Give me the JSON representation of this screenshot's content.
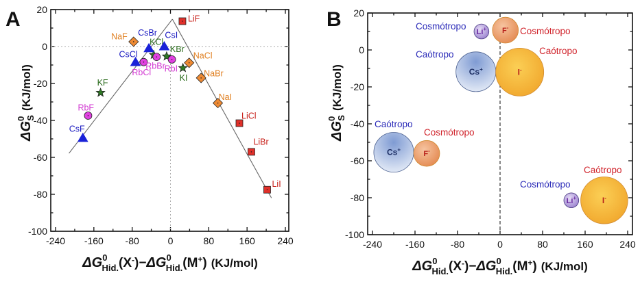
{
  "chart_data": [
    {
      "type": "scatter",
      "panel_label": "A",
      "xlabel": {
        "delta": "ΔG",
        "sup": "0",
        "sub": "Hid.",
        "p1": "(X",
        "minus": "-",
        "p2": ")−",
        "p3": "(M",
        "plus": "+",
        "p4": ")",
        "units": "(KJ/mol)"
      },
      "ylabel": {
        "delta": "ΔG",
        "sup": "0",
        "sub": "S",
        "units": "(KJ/mol)"
      },
      "xlim": [
        -250,
        250
      ],
      "ylim": [
        -100,
        20
      ],
      "xticks": [
        -240,
        -160,
        -80,
        0,
        80,
        160,
        240
      ],
      "yticks": [
        20,
        0,
        -20,
        -40,
        -60,
        -80,
        -100
      ],
      "reference_lines": {
        "x": 0,
        "y": 0,
        "style": "dotted"
      },
      "fit_lines": [
        {
          "x": [
            -212,
            4
          ],
          "y": [
            -57.8,
            14.8
          ]
        },
        {
          "x": [
            4,
            211
          ],
          "y": [
            14.8,
            -82
          ]
        }
      ],
      "series": [
        {
          "name": "Li",
          "marker": "square",
          "color": "#e0302a",
          "text_color": "#c8201a",
          "points": [
            {
              "label": "LiF",
              "x": 25,
              "y": 13.7
            },
            {
              "label": "LiCl",
              "x": 144,
              "y": -41.5
            },
            {
              "label": "LiBr",
              "x": 169,
              "y": -57
            },
            {
              "label": "LiI",
              "x": 202,
              "y": -77.5
            }
          ]
        },
        {
          "name": "Na",
          "marker": "diamond",
          "color": "#ee8a33",
          "text_color": "#e07f20",
          "points": [
            {
              "label": "NaF",
              "x": -77,
              "y": 2.6
            },
            {
              "label": "NaCl",
              "x": 39,
              "y": -8.8
            },
            {
              "label": "NaBr",
              "x": 64,
              "y": -17
            },
            {
              "label": "NaI",
              "x": 99,
              "y": -30.6
            }
          ]
        },
        {
          "name": "K",
          "marker": "star",
          "color": "#2f7a25",
          "text_color": "#2a6b1c",
          "points": [
            {
              "label": "KF",
              "x": -146,
              "y": -25
            },
            {
              "label": "KCl",
              "x": -35,
              "y": -4.5
            },
            {
              "label": "KBr",
              "x": -8,
              "y": -5.3
            },
            {
              "label": "KI",
              "x": 26,
              "y": -11.6
            }
          ]
        },
        {
          "name": "Rb",
          "marker": "circle",
          "color": "#e040e0",
          "text_color": "#d23ad2",
          "points": [
            {
              "label": "RbF",
              "x": -172,
              "y": -37.4
            },
            {
              "label": "RbCl",
              "x": -56,
              "y": -8.4
            },
            {
              "label": "RbBr",
              "x": -29,
              "y": -5.6
            },
            {
              "label": "RbI",
              "x": 3,
              "y": -7
            }
          ]
        },
        {
          "name": "Cs",
          "marker": "triangle",
          "color": "#1a22d8",
          "text_color": "#1818c0",
          "points": [
            {
              "label": "CsF",
              "x": -183,
              "y": -49.6
            },
            {
              "label": "CsCl",
              "x": -73,
              "y": -8.5
            },
            {
              "label": "CsBr",
              "x": -45,
              "y": -1
            },
            {
              "label": "CsI",
              "x": -13,
              "y": 0
            }
          ]
        }
      ]
    },
    {
      "type": "scatter",
      "subtype": "bubble",
      "panel_label": "B",
      "xlabel": {
        "delta": "ΔG",
        "sup": "0",
        "sub": "Hid.",
        "p1": "(X",
        "minus": "-",
        "p2": ")−",
        "p3": "(M",
        "plus": "+",
        "p4": ")",
        "units": "(KJ/mol)"
      },
      "ylabel": {
        "delta": "ΔG",
        "sup": "0",
        "sub": "S",
        "units": "(KJ/mol)"
      },
      "xlim": [
        -250,
        250
      ],
      "ylim": [
        -100,
        20
      ],
      "xticks": [
        -240,
        -160,
        -80,
        0,
        80,
        160,
        240
      ],
      "yticks": [
        20,
        0,
        -20,
        -40,
        -60,
        -80,
        -100
      ],
      "reference_lines": {
        "x": 0,
        "style": "dashed"
      },
      "bubbles": [
        {
          "ion": "Li",
          "charge": "+",
          "x": -35,
          "y": 10,
          "relative_size": 0.31,
          "fill": "#b9a6e0",
          "text_color": "#6a2aa0"
        },
        {
          "ion": "F",
          "charge": "-",
          "x": 10,
          "y": 10.7,
          "relative_size": 0.54,
          "fill": "#eea070",
          "text_color": "#b8201a"
        },
        {
          "ion": "Cs",
          "charge": "+",
          "x": -45.5,
          "y": -11.8,
          "relative_size": 0.83,
          "fill": "#a9bee3",
          "text_color": "#1d2e63"
        },
        {
          "ion": "I",
          "charge": "-",
          "x": 37,
          "y": -12,
          "relative_size": 1.0,
          "fill": "#f5b63a",
          "text_color": "#b8201a"
        },
        {
          "ion": "Cs",
          "charge": "+",
          "x": -200,
          "y": -55.4,
          "relative_size": 0.83,
          "fill": "#a9bee3",
          "text_color": "#1d2e63"
        },
        {
          "ion": "F",
          "charge": "-",
          "x": -138,
          "y": -56,
          "relative_size": 0.54,
          "fill": "#eea070",
          "text_color": "#b8201a"
        },
        {
          "ion": "Li",
          "charge": "+",
          "x": 134,
          "y": -81.4,
          "relative_size": 0.31,
          "fill": "#b9a6e0",
          "text_color": "#6a2aa0"
        },
        {
          "ion": "I",
          "charge": "-",
          "x": 196,
          "y": -81.4,
          "relative_size": 0.98,
          "fill": "#f5b63a",
          "text_color": "#b8201a"
        }
      ],
      "annotations": [
        {
          "text": "Cosmótropo",
          "color": "#2a2ab8"
        },
        {
          "text": "Cosmótropo",
          "color": "#d0222a"
        },
        {
          "text": "Caótropo",
          "color": "#2a2ab8"
        },
        {
          "text": "Caótropo",
          "color": "#d0222a"
        },
        {
          "text": "Caótropo",
          "color": "#2a2ab8"
        },
        {
          "text": "Cosmótropo",
          "color": "#d0222a"
        },
        {
          "text": "Cosmótropo",
          "color": "#2a2ab8"
        },
        {
          "text": "Caótropo",
          "color": "#d0222a"
        }
      ]
    }
  ]
}
